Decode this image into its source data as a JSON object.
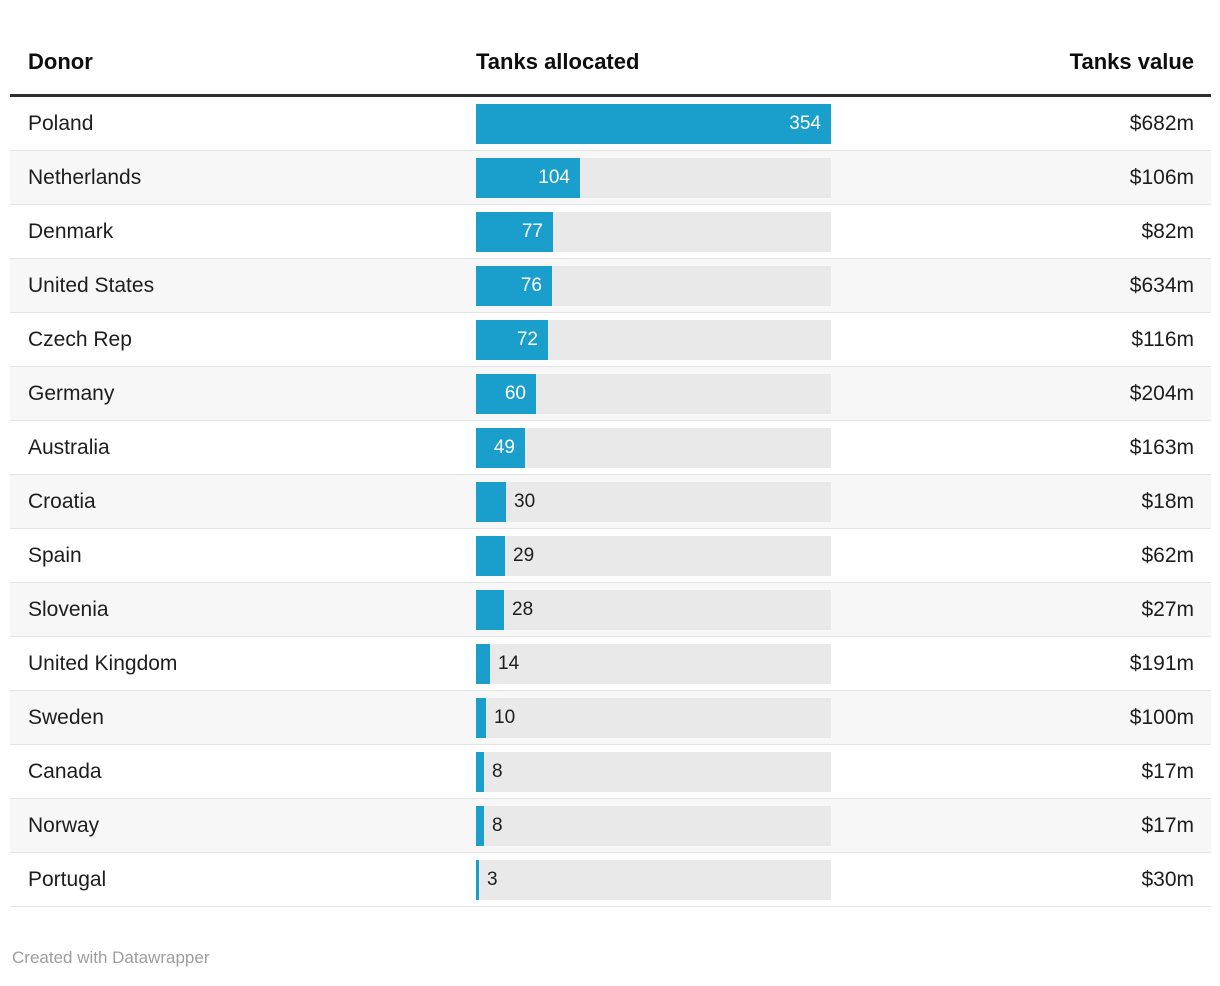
{
  "header": {
    "donor": "Donor",
    "tanks_allocated": "Tanks allocated",
    "tanks_value": "Tanks value"
  },
  "rows": [
    {
      "donor": "Poland",
      "tanks": 354,
      "value": "$682m"
    },
    {
      "donor": "Netherlands",
      "tanks": 104,
      "value": "$106m"
    },
    {
      "donor": "Denmark",
      "tanks": 77,
      "value": "$82m"
    },
    {
      "donor": "United States",
      "tanks": 76,
      "value": "$634m"
    },
    {
      "donor": "Czech Rep",
      "tanks": 72,
      "value": "$116m"
    },
    {
      "donor": "Germany",
      "tanks": 60,
      "value": "$204m"
    },
    {
      "donor": "Australia",
      "tanks": 49,
      "value": "$163m"
    },
    {
      "donor": "Croatia",
      "tanks": 30,
      "value": "$18m"
    },
    {
      "donor": "Spain",
      "tanks": 29,
      "value": "$62m"
    },
    {
      "donor": "Slovenia",
      "tanks": 28,
      "value": "$27m"
    },
    {
      "donor": "United Kingdom",
      "tanks": 14,
      "value": "$191m"
    },
    {
      "donor": "Sweden",
      "tanks": 10,
      "value": "$100m"
    },
    {
      "donor": "Canada",
      "tanks": 8,
      "value": "$17m"
    },
    {
      "donor": "Norway",
      "tanks": 8,
      "value": "$17m"
    },
    {
      "donor": "Portugal",
      "tanks": 3,
      "value": "$30m"
    }
  ],
  "footer": {
    "credit": "Created with Datawrapper"
  },
  "colors": {
    "bar": "#1a9fcd",
    "bar_track": "#e9e9e9",
    "row_stripe": "#f7f7f7",
    "header_rule": "#2e2e2e",
    "row_border": "#e4e4e4",
    "body_text": "#1d1d1d",
    "bar_label_inside": "#ffffff",
    "footer_text": "#9d9d9d"
  },
  "chart_data": {
    "type": "bar",
    "orientation": "horizontal",
    "title": "",
    "categories": [
      "Poland",
      "Netherlands",
      "Denmark",
      "United States",
      "Czech Rep",
      "Germany",
      "Australia",
      "Croatia",
      "Spain",
      "Slovenia",
      "United Kingdom",
      "Sweden",
      "Canada",
      "Norway",
      "Portugal"
    ],
    "series": [
      {
        "name": "Tanks allocated",
        "values": [
          354,
          104,
          77,
          76,
          72,
          60,
          49,
          30,
          29,
          28,
          14,
          10,
          8,
          8,
          3
        ]
      },
      {
        "name": "Tanks value",
        "values_text": [
          "$682m",
          "$106m",
          "$82m",
          "$634m",
          "$116m",
          "$204m",
          "$163m",
          "$18m",
          "$62m",
          "$27m",
          "$191m",
          "$100m",
          "$17m",
          "$17m",
          "$30m"
        ],
        "values_millions_usd": [
          682,
          106,
          82,
          634,
          116,
          204,
          163,
          18,
          62,
          27,
          191,
          100,
          17,
          17,
          30
        ]
      }
    ],
    "xlim": [
      0,
      354
    ],
    "grid": false,
    "legend": false,
    "value_labels": true
  }
}
